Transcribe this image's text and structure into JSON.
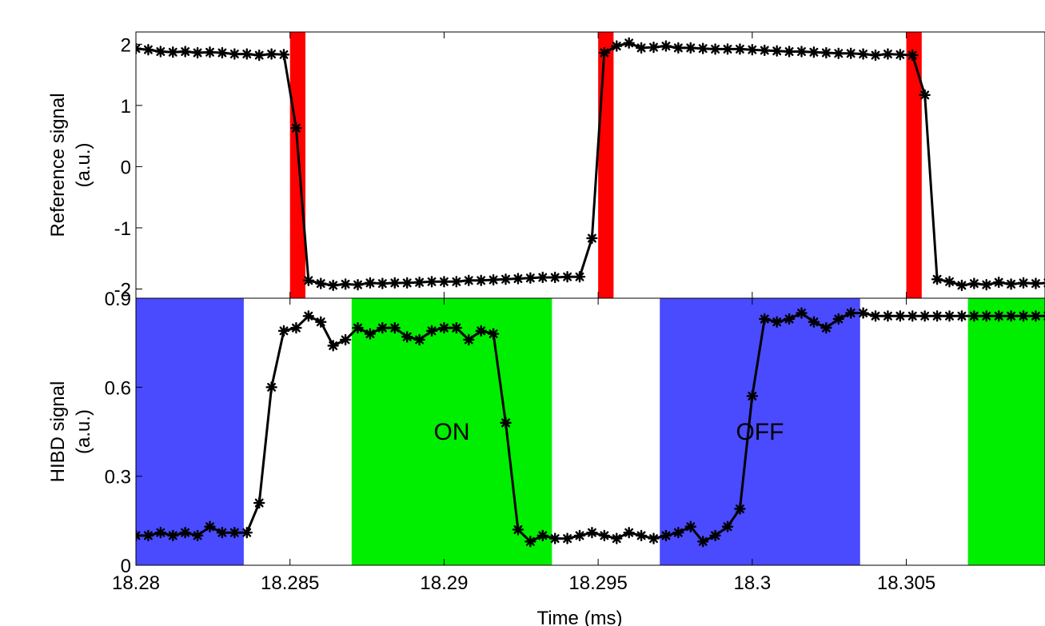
{
  "chart_data": [
    {
      "type": "line",
      "ylabel_lines": [
        "Reference signal",
        "(a.u.)"
      ],
      "xlim": [
        18.28,
        18.3095
      ],
      "ylim": [
        -2.15,
        2.2
      ],
      "yticks": [
        2,
        1,
        0,
        -1,
        -2
      ],
      "ytick_labels": [
        "2",
        "1",
        "0",
        "-1",
        "-2"
      ],
      "line_color": "#000000",
      "marker": "asterisk",
      "regions": [
        {
          "x0": 18.285,
          "x1": 18.2855,
          "color": "#ff0000"
        },
        {
          "x0": 18.295,
          "x1": 18.2955,
          "color": "#ff0000"
        },
        {
          "x0": 18.305,
          "x1": 18.3055,
          "color": "#ff0000"
        }
      ],
      "x": [
        18.28,
        18.2802,
        18.2804,
        18.2806,
        18.2808,
        18.281,
        18.2812,
        18.2814,
        18.2816,
        18.2818,
        18.282,
        18.2822,
        18.2824,
        18.2826,
        18.2828,
        18.283,
        18.2832,
        18.2834,
        18.2836,
        18.2838,
        18.284,
        18.2842,
        18.2844,
        18.2846,
        18.2848,
        18.285,
        18.2852,
        18.2854,
        18.2856,
        18.2858,
        18.286,
        18.2862,
        18.2864,
        18.2866,
        18.2868,
        18.287,
        18.2872,
        18.2874,
        18.2876,
        18.2878,
        18.288,
        18.2882,
        18.2884,
        18.2886,
        18.2888,
        18.289,
        18.2892,
        18.2894,
        18.2896,
        18.2898,
        18.29,
        18.2902,
        18.2904,
        18.2906,
        18.2908,
        18.291,
        18.2912,
        18.2914,
        18.2916,
        18.2918,
        18.292,
        18.2922,
        18.2924,
        18.2926,
        18.2928,
        18.293,
        18.2932,
        18.2934,
        18.2936,
        18.2938,
        18.294,
        18.2942,
        18.2944,
        18.2946,
        18.2948,
        18.295,
        18.2952,
        18.2954,
        18.2956,
        18.2958,
        18.296,
        18.2962,
        18.2964,
        18.2966,
        18.2968,
        18.297,
        18.2972,
        18.2974,
        18.2976,
        18.2978,
        18.298,
        18.2982,
        18.2984,
        18.2986,
        18.2988,
        18.299,
        18.2992,
        18.2994,
        18.2996,
        18.2998,
        18.3,
        18.3002,
        18.3004,
        18.3006,
        18.3008,
        18.301,
        18.3012,
        18.3014,
        18.3016,
        18.3018,
        18.302,
        18.3022,
        18.3024,
        18.3026,
        18.3028,
        18.303,
        18.3032,
        18.3034,
        18.3036,
        18.3038,
        18.304,
        18.3042,
        18.3044,
        18.3046,
        18.3048,
        18.305,
        18.3052,
        18.3054,
        18.3056,
        18.3058,
        18.306,
        18.3062,
        18.3064,
        18.3066,
        18.3068,
        18.307,
        18.3072,
        18.3074,
        18.3076,
        18.3078,
        18.308,
        18.3082,
        18.3084,
        18.3086,
        18.3088,
        18.309,
        18.3092,
        18.3094
      ],
      "points_x": [
        18.28,
        18.2804,
        18.2808,
        18.2812,
        18.2816,
        18.282,
        18.2824,
        18.2828,
        18.2832,
        18.2836,
        18.284,
        18.2844,
        18.2848,
        18.2852,
        18.2856,
        18.286,
        18.2864,
        18.2868,
        18.2872,
        18.2876,
        18.288,
        18.2884,
        18.2888,
        18.2892,
        18.2896,
        18.29,
        18.2904,
        18.2908,
        18.2912,
        18.2916,
        18.292,
        18.2924,
        18.2928,
        18.2932,
        18.2936,
        18.294,
        18.2944,
        18.2948,
        18.2952,
        18.2956,
        18.296,
        18.2964,
        18.2968,
        18.2972,
        18.2976,
        18.298,
        18.2984,
        18.2988,
        18.2992,
        18.2996,
        18.3,
        18.3004,
        18.3008,
        18.3012,
        18.3016,
        18.302,
        18.3024,
        18.3028,
        18.3032,
        18.3036,
        18.304,
        18.3044,
        18.3048,
        18.3052,
        18.3056,
        18.306,
        18.3064,
        18.3068,
        18.3072,
        18.3076,
        18.308,
        18.3084,
        18.3088,
        18.3092,
        18.3096
      ],
      "points_y": [
        1.93,
        1.91,
        1.88,
        1.87,
        1.88,
        1.86,
        1.87,
        1.86,
        1.84,
        1.84,
        1.82,
        1.84,
        1.83,
        0.63,
        -1.86,
        -1.91,
        -1.94,
        -1.92,
        -1.93,
        -1.9,
        -1.91,
        -1.9,
        -1.9,
        -1.89,
        -1.88,
        -1.88,
        -1.88,
        -1.86,
        -1.86,
        -1.85,
        -1.84,
        -1.83,
        -1.82,
        -1.81,
        -1.81,
        -1.8,
        -1.8,
        -1.17,
        1.86,
        1.97,
        2.02,
        1.94,
        1.95,
        1.97,
        1.94,
        1.94,
        1.93,
        1.92,
        1.92,
        1.92,
        1.91,
        1.9,
        1.89,
        1.88,
        1.88,
        1.87,
        1.86,
        1.85,
        1.85,
        1.84,
        1.82,
        1.84,
        1.83,
        1.82,
        1.17,
        -1.84,
        -1.88,
        -1.94,
        -1.91,
        -1.93,
        -1.89,
        -1.92,
        -1.9,
        -1.91,
        -1.9
      ]
    },
    {
      "type": "line",
      "ylabel_lines": [
        "HIBD signal",
        "(a.u.)"
      ],
      "xlabel": "Time (ms)",
      "xlim": [
        18.28,
        18.3095
      ],
      "ylim": [
        0,
        0.9
      ],
      "yticks": [
        0.9,
        0.6,
        0.3,
        0
      ],
      "ytick_labels": [
        "0.9",
        "0.6",
        "0.3",
        "0"
      ],
      "xticks": [
        18.28,
        18.285,
        18.29,
        18.295,
        18.3,
        18.305
      ],
      "xtick_labels": [
        "18.28",
        "18.285",
        "18.29",
        "18.295",
        "18.3",
        "18.305"
      ],
      "line_color": "#000000",
      "marker": "asterisk",
      "regions": [
        {
          "x0": 18.28,
          "x1": 18.2835,
          "color": "#4a4aff",
          "label": ""
        },
        {
          "x0": 18.287,
          "x1": 18.2935,
          "color": "#00ee00",
          "label": "ON"
        },
        {
          "x0": 18.297,
          "x1": 18.3035,
          "color": "#4a4aff",
          "label": "OFF"
        },
        {
          "x0": 18.307,
          "x1": 18.3095,
          "color": "#00ee00",
          "label": ""
        }
      ],
      "points_x": [
        18.28,
        18.2804,
        18.2808,
        18.2812,
        18.2816,
        18.282,
        18.2824,
        18.2828,
        18.2832,
        18.2836,
        18.284,
        18.2844,
        18.2848,
        18.2852,
        18.2856,
        18.286,
        18.2864,
        18.2868,
        18.2872,
        18.2876,
        18.288,
        18.2884,
        18.2888,
        18.2892,
        18.2896,
        18.29,
        18.2904,
        18.2908,
        18.2912,
        18.2916,
        18.292,
        18.2924,
        18.2928,
        18.2932,
        18.2936,
        18.294,
        18.2944,
        18.2948,
        18.2952,
        18.2956,
        18.296,
        18.2964,
        18.2968,
        18.2972,
        18.2976,
        18.298,
        18.2984,
        18.2988,
        18.2992,
        18.2996,
        18.3,
        18.3004,
        18.3008,
        18.3012,
        18.3016,
        18.302,
        18.3024,
        18.3028,
        18.3032,
        18.3036,
        18.304,
        18.3044,
        18.3048,
        18.3052,
        18.3056,
        18.306,
        18.3064,
        18.3068,
        18.3072,
        18.3076,
        18.308,
        18.3084,
        18.3088,
        18.3092,
        18.3096
      ],
      "points_y": [
        0.1,
        0.1,
        0.11,
        0.1,
        0.11,
        0.1,
        0.13,
        0.11,
        0.11,
        0.11,
        0.21,
        0.6,
        0.79,
        0.8,
        0.84,
        0.82,
        0.74,
        0.76,
        0.8,
        0.78,
        0.8,
        0.8,
        0.77,
        0.76,
        0.79,
        0.8,
        0.8,
        0.76,
        0.79,
        0.78,
        0.48,
        0.12,
        0.08,
        0.1,
        0.09,
        0.09,
        0.1,
        0.11,
        0.1,
        0.09,
        0.11,
        0.1,
        0.09,
        0.1,
        0.11,
        0.13,
        0.08,
        0.1,
        0.13,
        0.19,
        0.57,
        0.83,
        0.82,
        0.83,
        0.85,
        0.82,
        0.8,
        0.83,
        0.85,
        0.85,
        0.84,
        0.84,
        0.84,
        0.84,
        0.84,
        0.84,
        0.84,
        0.84,
        0.84,
        0.84,
        0.84,
        0.84,
        0.84,
        0.84,
        0.84
      ]
    }
  ]
}
